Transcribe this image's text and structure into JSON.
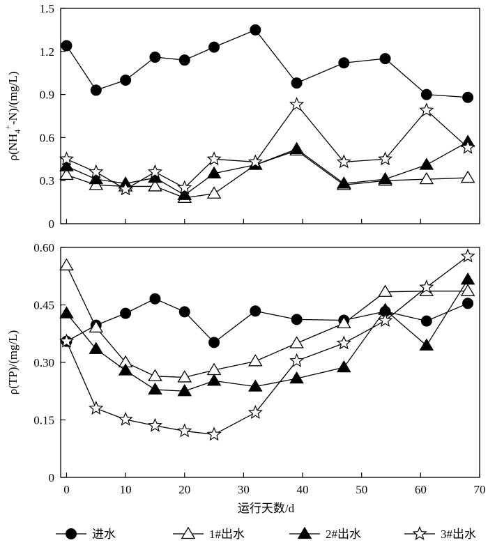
{
  "chart_data": [
    {
      "type": "line",
      "ylabel": "ρ(NH4+-N)/(mg/L)",
      "ylabel_parts": {
        "prefix": "ρ(NH",
        "sub": "4",
        "sup": "+",
        "suffix": "-N)/(mg/L)"
      },
      "xlim": [
        -1,
        70
      ],
      "ylim": [
        0,
        1.5
      ],
      "yticks": [
        "0",
        "0.3",
        "0.6",
        "0.9",
        "1.2",
        "1.5"
      ],
      "ytick_values": [
        0,
        0.3,
        0.6,
        0.9,
        1.2,
        1.5
      ],
      "xtick_values": [
        0,
        10,
        20,
        30,
        40,
        50,
        60,
        70
      ],
      "series": [
        {
          "name": "进水",
          "marker": "circle",
          "x": [
            0,
            5,
            10,
            15,
            20,
            25,
            32,
            39,
            47,
            54,
            61,
            68
          ],
          "values": [
            1.24,
            0.93,
            1.0,
            1.16,
            1.14,
            1.23,
            1.35,
            0.98,
            1.12,
            1.15,
            0.9,
            0.88
          ]
        },
        {
          "name": "1#出水",
          "marker": "triangle-open",
          "x": [
            0,
            5,
            10,
            15,
            20,
            25,
            32,
            39,
            47,
            54,
            61,
            68
          ],
          "values": [
            0.34,
            0.27,
            0.26,
            0.26,
            0.18,
            0.21,
            0.41,
            0.51,
            0.27,
            0.3,
            0.31,
            0.32
          ]
        },
        {
          "name": "2#出水",
          "marker": "triangle-filled",
          "x": [
            0,
            5,
            10,
            15,
            20,
            25,
            32,
            39,
            47,
            54,
            61,
            68
          ],
          "values": [
            0.4,
            0.31,
            0.28,
            0.32,
            0.2,
            0.35,
            0.41,
            0.52,
            0.28,
            0.31,
            0.41,
            0.57
          ]
        },
        {
          "name": "3#出水",
          "marker": "star-open",
          "x": [
            0,
            5,
            10,
            15,
            20,
            25,
            32,
            39,
            47,
            54,
            61,
            68
          ],
          "values": [
            0.45,
            0.36,
            0.24,
            0.36,
            0.25,
            0.45,
            0.43,
            0.83,
            0.43,
            0.45,
            0.79,
            0.53
          ]
        }
      ]
    },
    {
      "type": "line",
      "ylabel": "ρ(TP)/(mg/L)",
      "xlabel": "运行天数/d",
      "xlim": [
        -1,
        70
      ],
      "ylim": [
        0,
        0.6
      ],
      "yticks": [
        "0",
        "0.15",
        "0.30",
        "0.45",
        "0.60"
      ],
      "ytick_values": [
        0,
        0.15,
        0.3,
        0.45,
        0.6
      ],
      "xticks": [
        "0",
        "10",
        "20",
        "30",
        "40",
        "50",
        "60",
        "70"
      ],
      "xtick_values": [
        0,
        10,
        20,
        30,
        40,
        50,
        60,
        70
      ],
      "series": [
        {
          "name": "进水",
          "marker": "circle",
          "x": [
            0,
            5,
            10,
            15,
            20,
            25,
            32,
            39,
            47,
            54,
            61,
            68
          ],
          "values": [
            0.355,
            0.397,
            0.428,
            0.466,
            0.432,
            0.352,
            0.434,
            0.412,
            0.41,
            0.433,
            0.408,
            0.454
          ]
        },
        {
          "name": "1#出水",
          "marker": "triangle-open",
          "x": [
            0,
            5,
            10,
            15,
            20,
            25,
            32,
            39,
            47,
            54,
            61,
            68
          ],
          "values": [
            0.553,
            0.391,
            0.3,
            0.264,
            0.261,
            0.28,
            0.303,
            0.35,
            0.402,
            0.484,
            0.486,
            0.486
          ]
        },
        {
          "name": "2#出水",
          "marker": "triangle-filled",
          "x": [
            0,
            5,
            10,
            15,
            20,
            25,
            32,
            39,
            47,
            54,
            61,
            68
          ],
          "values": [
            0.428,
            0.335,
            0.279,
            0.229,
            0.225,
            0.252,
            0.237,
            0.258,
            0.287,
            0.437,
            0.344,
            0.516
          ]
        },
        {
          "name": "3#出水",
          "marker": "star-open",
          "x": [
            0,
            5,
            10,
            15,
            20,
            25,
            32,
            39,
            47,
            54,
            61,
            68
          ],
          "values": [
            0.355,
            0.18,
            0.151,
            0.135,
            0.121,
            0.112,
            0.169,
            0.304,
            0.35,
            0.409,
            0.496,
            0.577
          ]
        }
      ]
    }
  ],
  "legend": {
    "placement": "bottom",
    "items": [
      {
        "label": "进水",
        "marker": "circle"
      },
      {
        "label": "1#出水",
        "marker": "triangle-open"
      },
      {
        "label": "2#出水",
        "marker": "triangle-filled"
      },
      {
        "label": "3#出水",
        "marker": "star-open"
      }
    ]
  }
}
